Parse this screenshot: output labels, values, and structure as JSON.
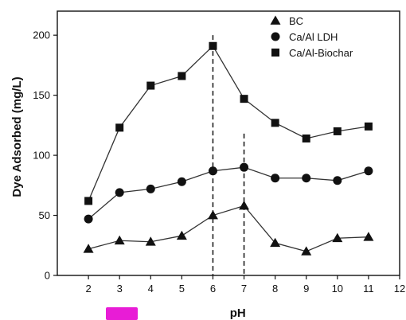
{
  "chart_data": {
    "type": "line",
    "xlabel": "pH",
    "ylabel": "Dye Adsorbed (mg/L)",
    "xlim": [
      1,
      12
    ],
    "ylim": [
      0,
      220
    ],
    "xticks": [
      2,
      3,
      4,
      5,
      6,
      7,
      8,
      9,
      10,
      11,
      12
    ],
    "yticks": [
      0,
      50,
      100,
      150,
      200
    ],
    "legend_position": "top-right",
    "reference_lines_x": [
      {
        "x": 6,
        "y_top": 200
      },
      {
        "x": 7,
        "y_top": 118
      }
    ],
    "series": [
      {
        "name": "BC",
        "marker": "triangle",
        "x": [
          2,
          3,
          4,
          5,
          6,
          7,
          8,
          9,
          10,
          11
        ],
        "y": [
          22,
          29,
          28,
          33,
          50,
          58,
          27,
          20,
          31,
          32
        ]
      },
      {
        "name": "Ca/Al LDH",
        "marker": "circle",
        "x": [
          2,
          3,
          4,
          5,
          6,
          7,
          8,
          9,
          10,
          11
        ],
        "y": [
          47,
          69,
          72,
          78,
          87,
          90,
          81,
          81,
          79,
          87
        ]
      },
      {
        "name": "Ca/Al-Biochar",
        "marker": "square",
        "x": [
          2,
          3,
          4,
          5,
          6,
          7,
          8,
          9,
          10,
          11
        ],
        "y": [
          62,
          123,
          158,
          166,
          191,
          147,
          127,
          114,
          120,
          124
        ]
      }
    ]
  },
  "badge": {
    "color": "#e81cd6"
  }
}
